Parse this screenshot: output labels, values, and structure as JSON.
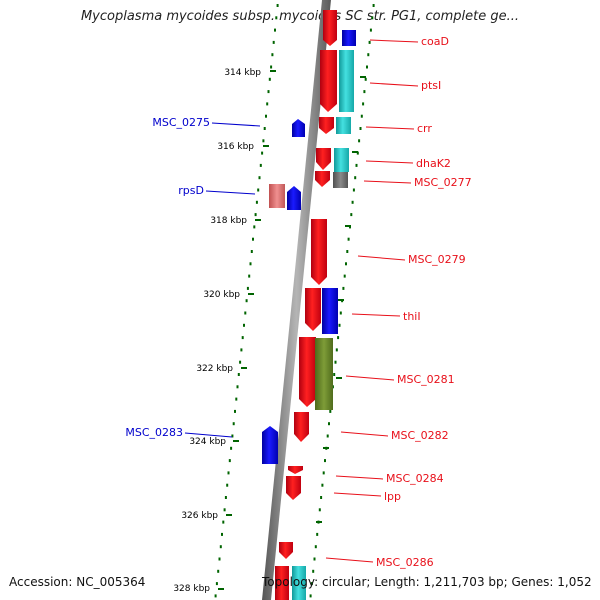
{
  "title": "Mycoplasma mycoides subsp. mycoides SC str. PG1, complete ge...",
  "footer": {
    "accession": "Accession: NC_005364",
    "summary": "Topology: circular; Length: 1,211,703 bp; Genes: 1,052"
  },
  "colors": {
    "forward_label": "#0000cc",
    "reverse_label": "#e8101a",
    "tick": "#006400",
    "gene_red": "#e8101a",
    "gene_blue": "#0000ee",
    "gene_cyan": "#22cccc",
    "gene_grey": "#707070",
    "gene_olive": "#6b8a2a",
    "gene_pink": "#e07a7a",
    "backbone": "#808080"
  },
  "scale": {
    "ticks": [
      {
        "kbp": 314,
        "label": "314 kbp"
      },
      {
        "kbp": 316,
        "label": "316 kbp"
      },
      {
        "kbp": 318,
        "label": "318 kbp"
      },
      {
        "kbp": 320,
        "label": "320 kbp"
      },
      {
        "kbp": 322,
        "label": "322 kbp"
      },
      {
        "kbp": 324,
        "label": "324 kbp"
      },
      {
        "kbp": 326,
        "label": "326 kbp"
      },
      {
        "kbp": 328,
        "label": "328 kbp"
      }
    ]
  },
  "gene_labels": [
    {
      "text": "coaD",
      "strand": "reverse"
    },
    {
      "text": "ptsI",
      "strand": "reverse"
    },
    {
      "text": "MSC_0275",
      "strand": "forward"
    },
    {
      "text": "crr",
      "strand": "reverse"
    },
    {
      "text": "dhaK2",
      "strand": "reverse"
    },
    {
      "text": "MSC_0277",
      "strand": "reverse"
    },
    {
      "text": "rpsD",
      "strand": "forward"
    },
    {
      "text": "MSC_0279",
      "strand": "reverse"
    },
    {
      "text": "thiI",
      "strand": "reverse"
    },
    {
      "text": "MSC_0281",
      "strand": "reverse"
    },
    {
      "text": "MSC_0282",
      "strand": "reverse"
    },
    {
      "text": "MSC_0283",
      "strand": "forward"
    },
    {
      "text": "MSC_0284",
      "strand": "reverse"
    },
    {
      "text": "lpp",
      "strand": "reverse"
    },
    {
      "text": "MSC_0286",
      "strand": "reverse"
    }
  ]
}
